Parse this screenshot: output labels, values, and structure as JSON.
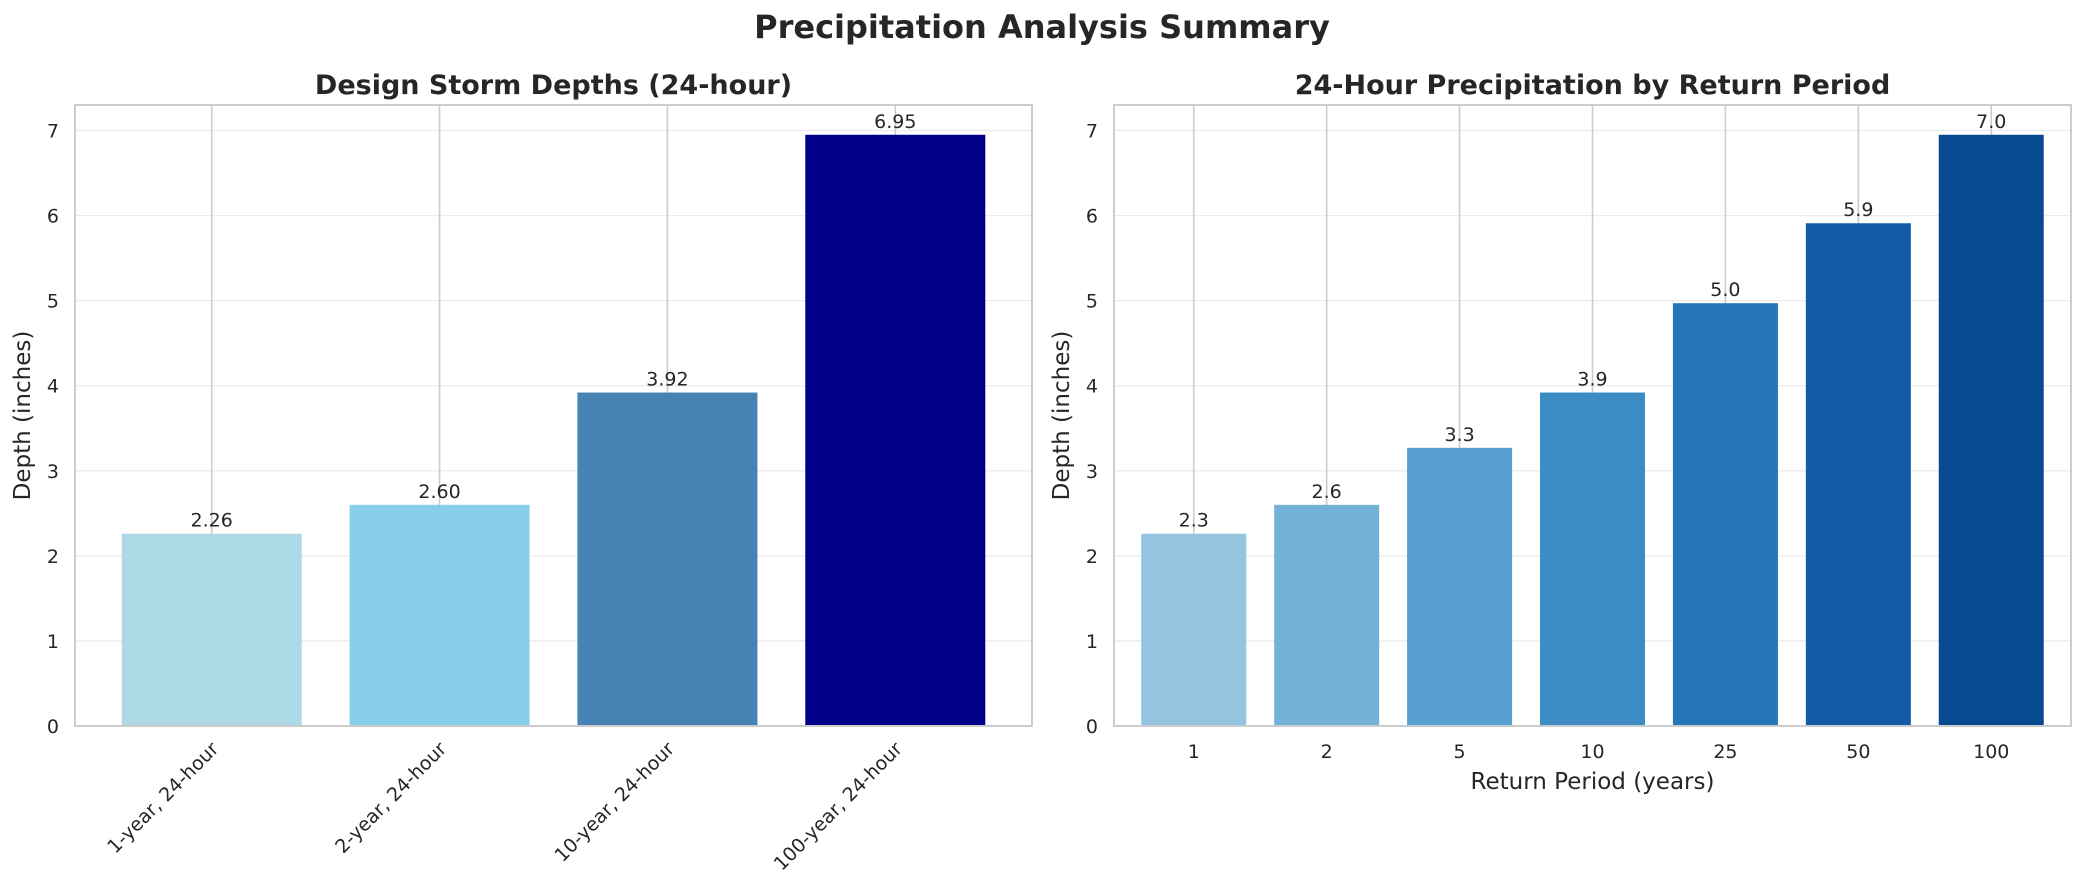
{
  "figure": {
    "title": "Precipitation Analysis Summary"
  },
  "chart_data": [
    {
      "type": "bar",
      "title": "Design Storm Depths (24-hour)",
      "xlabel": "",
      "ylabel": "Depth (inches)",
      "ylim": [
        0,
        7.3
      ],
      "yticks": [
        "0",
        "1",
        "2",
        "3",
        "4",
        "5",
        "6",
        "7"
      ],
      "grid": true,
      "categories": [
        "1-year, 24-hour",
        "2-year, 24-hour",
        "10-year, 24-hour",
        "100-year, 24-hour"
      ],
      "values": [
        2.26,
        2.6,
        3.92,
        6.95
      ],
      "value_labels": [
        "2.26",
        "2.60",
        "3.92",
        "6.95"
      ],
      "colors": [
        "#add8e6",
        "#87ceeb",
        "#4682b4",
        "#00008b"
      ],
      "xtick_rotation": 45
    },
    {
      "type": "bar",
      "title": "24-Hour Precipitation by Return Period",
      "xlabel": "Return Period (years)",
      "ylabel": "Depth (inches)",
      "ylim": [
        0,
        7.3
      ],
      "yticks": [
        "0",
        "1",
        "2",
        "3",
        "4",
        "5",
        "6",
        "7"
      ],
      "grid": true,
      "categories": [
        "1",
        "2",
        "5",
        "10",
        "25",
        "50",
        "100"
      ],
      "values": [
        2.26,
        2.6,
        3.27,
        3.92,
        4.97,
        5.91,
        6.95
      ],
      "value_labels": [
        "2.3",
        "2.6",
        "3.3",
        "3.9",
        "5.0",
        "5.9",
        "7.0"
      ],
      "colors": [
        "#94c4df",
        "#72b1d8",
        "#569fce",
        "#3d8cc4",
        "#2575b7",
        "#125ca7",
        "#084a91"
      ],
      "xtick_rotation": 0
    }
  ]
}
